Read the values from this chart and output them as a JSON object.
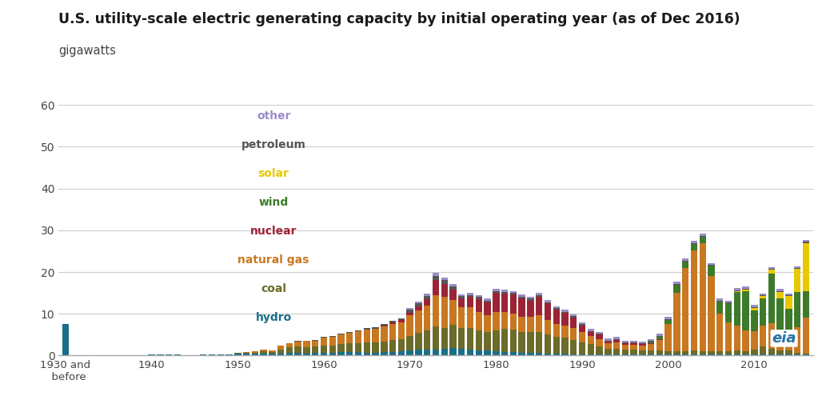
{
  "title": "U.S. utility-scale electric generating capacity by initial operating year (as of Dec 2016)",
  "ylabel": "gigawatts",
  "ylim": [
    0,
    60
  ],
  "yticks": [
    0,
    10,
    20,
    30,
    40,
    50,
    60
  ],
  "background_color": "#ffffff",
  "colors": {
    "hydro": "#1a6e8a",
    "coal": "#6b6b2a",
    "natural_gas": "#c87820",
    "nuclear": "#9b2335",
    "wind": "#3d7a2a",
    "solar": "#e8c800",
    "petroleum": "#555555",
    "other": "#9b8dc8"
  },
  "legend_items": [
    [
      "other",
      "#9b8dc8"
    ],
    [
      "petroleum",
      "#555555"
    ],
    [
      "solar",
      "#e8c800"
    ],
    [
      "wind",
      "#3d7a2a"
    ],
    [
      "nuclear",
      "#9b2335"
    ],
    [
      "natural gas",
      "#c87820"
    ],
    [
      "coal",
      "#6b6b2a"
    ],
    [
      "hydro",
      "#1a6e8a"
    ]
  ],
  "tick_positions": [
    0,
    10,
    20,
    30,
    40,
    50,
    60,
    70,
    80
  ],
  "tick_labels": [
    "1930 and\n  before",
    "1940",
    "1950",
    "1960",
    "1970",
    "1980",
    "1990",
    "2000",
    "2010"
  ],
  "hydro": [
    7.5,
    0.05,
    0.05,
    0.05,
    0.1,
    0.1,
    0.15,
    0.1,
    0.1,
    0.1,
    0.2,
    0.2,
    0.2,
    0.2,
    0.1,
    0.15,
    0.3,
    0.3,
    0.3,
    0.2,
    0.4,
    0.4,
    0.4,
    0.5,
    0.4,
    0.5,
    0.6,
    0.7,
    0.5,
    0.6,
    0.7,
    0.6,
    0.8,
    0.8,
    0.8,
    0.7,
    0.7,
    0.8,
    0.9,
    1.0,
    1.2,
    1.4,
    1.5,
    1.5,
    1.6,
    1.8,
    1.6,
    1.5,
    1.2,
    1.2,
    1.0,
    0.9,
    0.8,
    0.7,
    0.7,
    0.6,
    0.5,
    0.5,
    0.4,
    0.3,
    0.2,
    0.2,
    0.2,
    0.2,
    0.2,
    0.2,
    0.2,
    0.2,
    0.2,
    0.2,
    0.2,
    0.2,
    0.2,
    0.2,
    0.2,
    0.2,
    0.2,
    0.2,
    0.2,
    0.2,
    0.2,
    0.2,
    0.2,
    0.2,
    0.2,
    0.2,
    0.2
  ],
  "coal": [
    0.0,
    0.0,
    0.0,
    0.0,
    0.0,
    0.0,
    0.0,
    0.0,
    0.0,
    0.0,
    0.0,
    0.0,
    0.0,
    0.0,
    0.0,
    0.0,
    0.0,
    0.0,
    0.0,
    0.0,
    0.2,
    0.3,
    0.3,
    0.5,
    0.4,
    1.0,
    1.3,
    1.5,
    1.5,
    1.5,
    1.7,
    1.8,
    2.0,
    2.2,
    2.2,
    2.5,
    2.5,
    2.6,
    2.8,
    3.0,
    3.5,
    4.0,
    4.5,
    5.5,
    5.0,
    5.5,
    5.0,
    5.0,
    4.8,
    4.5,
    5.0,
    5.5,
    5.5,
    5.0,
    5.0,
    5.0,
    4.5,
    4.0,
    3.8,
    3.5,
    3.0,
    2.5,
    2.0,
    1.5,
    1.5,
    1.2,
    1.2,
    1.0,
    1.0,
    1.0,
    0.8,
    0.8,
    0.8,
    1.0,
    0.8,
    0.8,
    0.8,
    0.8,
    1.0,
    0.8,
    1.2,
    2.0,
    1.5,
    1.0,
    1.0,
    0.5,
    0.3
  ],
  "natural_gas": [
    0.0,
    0.0,
    0.0,
    0.0,
    0.0,
    0.0,
    0.0,
    0.0,
    0.0,
    0.0,
    0.0,
    0.0,
    0.0,
    0.0,
    0.0,
    0.0,
    0.0,
    0.0,
    0.0,
    0.0,
    0.1,
    0.2,
    0.3,
    0.4,
    0.4,
    0.8,
    1.0,
    1.2,
    1.5,
    1.5,
    1.8,
    2.0,
    2.2,
    2.5,
    2.8,
    3.0,
    3.2,
    3.5,
    3.8,
    4.0,
    5.0,
    5.5,
    6.0,
    7.5,
    7.5,
    6.0,
    5.0,
    5.0,
    4.5,
    4.0,
    4.5,
    4.0,
    3.8,
    3.5,
    3.5,
    4.0,
    3.5,
    3.0,
    3.0,
    2.8,
    2.5,
    2.0,
    1.8,
    1.2,
    1.5,
    1.2,
    1.2,
    1.2,
    1.5,
    2.5,
    6.5,
    14.0,
    20.0,
    24.0,
    26.0,
    18.0,
    9.0,
    7.0,
    6.0,
    5.0,
    4.5,
    5.0,
    6.0,
    5.0,
    5.0,
    6.0,
    8.5
  ],
  "nuclear": [
    0.0,
    0.0,
    0.0,
    0.0,
    0.0,
    0.0,
    0.0,
    0.0,
    0.0,
    0.0,
    0.0,
    0.0,
    0.0,
    0.0,
    0.0,
    0.0,
    0.0,
    0.0,
    0.0,
    0.0,
    0.0,
    0.0,
    0.0,
    0.0,
    0.0,
    0.0,
    0.0,
    0.0,
    0.0,
    0.0,
    0.0,
    0.0,
    0.0,
    0.0,
    0.0,
    0.0,
    0.0,
    0.2,
    0.4,
    0.5,
    0.5,
    0.8,
    1.5,
    3.5,
    3.0,
    2.5,
    2.0,
    2.5,
    3.0,
    3.0,
    4.5,
    4.5,
    4.5,
    4.5,
    4.0,
    4.5,
    4.0,
    3.5,
    3.0,
    2.5,
    1.5,
    1.0,
    1.0,
    0.5,
    0.5,
    0.3,
    0.3,
    0.3,
    0.3,
    0.3,
    0.0,
    0.0,
    0.0,
    0.0,
    0.0,
    0.0,
    0.0,
    0.0,
    0.0,
    0.0,
    0.0,
    0.0,
    0.0,
    0.0,
    0.0,
    0.0,
    0.0
  ],
  "wind": [
    0.0,
    0.0,
    0.0,
    0.0,
    0.0,
    0.0,
    0.0,
    0.0,
    0.0,
    0.0,
    0.0,
    0.0,
    0.0,
    0.0,
    0.0,
    0.0,
    0.0,
    0.0,
    0.0,
    0.0,
    0.0,
    0.0,
    0.0,
    0.0,
    0.0,
    0.0,
    0.0,
    0.0,
    0.0,
    0.0,
    0.0,
    0.0,
    0.0,
    0.0,
    0.0,
    0.0,
    0.0,
    0.0,
    0.0,
    0.0,
    0.0,
    0.0,
    0.0,
    0.0,
    0.0,
    0.0,
    0.0,
    0.0,
    0.0,
    0.0,
    0.0,
    0.0,
    0.0,
    0.0,
    0.0,
    0.0,
    0.0,
    0.0,
    0.0,
    0.0,
    0.0,
    0.0,
    0.0,
    0.0,
    0.0,
    0.0,
    0.0,
    0.0,
    0.3,
    0.5,
    1.0,
    2.0,
    1.5,
    1.5,
    1.5,
    2.5,
    3.0,
    4.5,
    8.0,
    9.5,
    5.0,
    6.5,
    12.0,
    7.5,
    5.0,
    8.5,
    6.5
  ],
  "solar": [
    0.0,
    0.0,
    0.0,
    0.0,
    0.0,
    0.0,
    0.0,
    0.0,
    0.0,
    0.0,
    0.0,
    0.0,
    0.0,
    0.0,
    0.0,
    0.0,
    0.0,
    0.0,
    0.0,
    0.0,
    0.0,
    0.0,
    0.0,
    0.0,
    0.0,
    0.0,
    0.0,
    0.0,
    0.0,
    0.0,
    0.0,
    0.0,
    0.0,
    0.0,
    0.0,
    0.0,
    0.0,
    0.0,
    0.0,
    0.0,
    0.0,
    0.0,
    0.0,
    0.0,
    0.0,
    0.0,
    0.0,
    0.0,
    0.0,
    0.0,
    0.0,
    0.0,
    0.0,
    0.0,
    0.0,
    0.0,
    0.0,
    0.0,
    0.0,
    0.0,
    0.0,
    0.0,
    0.0,
    0.0,
    0.0,
    0.0,
    0.0,
    0.0,
    0.0,
    0.0,
    0.0,
    0.0,
    0.0,
    0.0,
    0.0,
    0.0,
    0.0,
    0.0,
    0.2,
    0.3,
    0.5,
    0.5,
    0.8,
    1.5,
    3.0,
    5.5,
    11.5
  ],
  "petroleum": [
    0.0,
    0.0,
    0.0,
    0.0,
    0.0,
    0.0,
    0.0,
    0.0,
    0.0,
    0.0,
    0.0,
    0.0,
    0.0,
    0.0,
    0.0,
    0.0,
    0.0,
    0.0,
    0.0,
    0.0,
    0.0,
    0.0,
    0.0,
    0.0,
    0.0,
    0.1,
    0.1,
    0.2,
    0.1,
    0.1,
    0.2,
    0.2,
    0.2,
    0.2,
    0.3,
    0.3,
    0.3,
    0.4,
    0.4,
    0.4,
    0.8,
    0.8,
    0.8,
    1.0,
    1.0,
    0.8,
    0.6,
    0.5,
    0.5,
    0.5,
    0.5,
    0.4,
    0.4,
    0.4,
    0.4,
    0.4,
    0.3,
    0.3,
    0.3,
    0.3,
    0.3,
    0.2,
    0.2,
    0.2,
    0.2,
    0.2,
    0.2,
    0.2,
    0.2,
    0.2,
    0.2,
    0.2,
    0.2,
    0.2,
    0.2,
    0.2,
    0.2,
    0.2,
    0.2,
    0.2,
    0.2,
    0.2,
    0.2,
    0.2,
    0.2,
    0.2,
    0.2
  ],
  "other": [
    0.0,
    0.0,
    0.0,
    0.0,
    0.0,
    0.0,
    0.0,
    0.0,
    0.0,
    0.0,
    0.0,
    0.0,
    0.0,
    0.0,
    0.0,
    0.0,
    0.0,
    0.0,
    0.0,
    0.0,
    0.0,
    0.0,
    0.0,
    0.0,
    0.0,
    0.0,
    0.0,
    0.0,
    0.0,
    0.0,
    0.0,
    0.0,
    0.0,
    0.0,
    0.0,
    0.0,
    0.0,
    0.0,
    0.0,
    0.0,
    0.3,
    0.5,
    0.5,
    0.8,
    0.5,
    0.5,
    0.5,
    0.5,
    0.4,
    0.5,
    0.5,
    0.5,
    0.5,
    0.5,
    0.5,
    0.5,
    0.5,
    0.5,
    0.5,
    0.5,
    0.5,
    0.5,
    0.5,
    0.5,
    0.5,
    0.5,
    0.4,
    0.4,
    0.4,
    0.5,
    0.5,
    0.5,
    0.5,
    0.5,
    0.5,
    0.5,
    0.5,
    0.5,
    0.5,
    0.5,
    0.5,
    0.5,
    0.5,
    0.5,
    0.5,
    0.5,
    0.5
  ]
}
